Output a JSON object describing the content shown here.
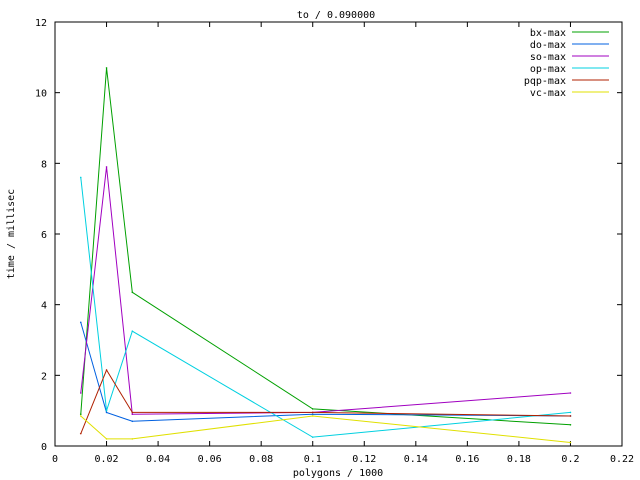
{
  "chart_data": {
    "type": "line",
    "title": "to / 0.090000",
    "xlabel": "polygons / 1000",
    "ylabel": "time / millisec",
    "xlim": [
      0,
      0.22
    ],
    "ylim": [
      0,
      12
    ],
    "xticks": [
      0,
      0.02,
      0.04,
      0.06,
      0.08,
      0.1,
      0.12,
      0.14,
      0.16,
      0.18,
      0.2,
      0.22
    ],
    "xtick_labels": [
      "0",
      "0.02",
      "0.04",
      "0.06",
      "0.08",
      "0.1",
      "0.12",
      "0.14",
      "0.16",
      "0.18",
      "0.2",
      "0.22"
    ],
    "yticks": [
      0,
      2,
      4,
      6,
      8,
      10,
      12
    ],
    "ytick_labels": [
      "0",
      "2",
      "4",
      "6",
      "8",
      "10",
      "12"
    ],
    "grid": false,
    "legend_position": "top-right",
    "x": [
      0.01,
      0.02,
      0.03,
      0.1,
      0.2
    ],
    "series": [
      {
        "name": "bx-max",
        "color": "#00a000",
        "values": [
          0.9,
          10.7,
          4.35,
          1.05,
          0.6
        ]
      },
      {
        "name": "do-max",
        "color": "#0060e0",
        "values": [
          3.5,
          0.95,
          0.7,
          0.9,
          0.85
        ]
      },
      {
        "name": "so-max",
        "color": "#a000c0",
        "values": [
          1.5,
          7.9,
          0.9,
          0.95,
          1.5
        ]
      },
      {
        "name": "op-max",
        "color": "#00d0e0",
        "values": [
          7.6,
          1.0,
          3.25,
          0.25,
          0.95
        ]
      },
      {
        "name": "pqp-max",
        "color": "#b02000",
        "values": [
          0.35,
          2.15,
          0.95,
          0.95,
          0.85
        ]
      },
      {
        "name": "vc-max",
        "color": "#e0e000",
        "values": [
          0.85,
          0.2,
          0.2,
          0.85,
          0.1
        ]
      }
    ]
  }
}
